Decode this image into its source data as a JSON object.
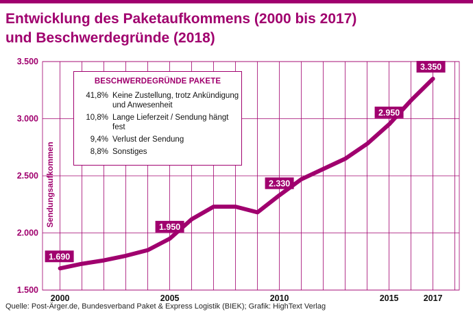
{
  "colors": {
    "accent": "#a0006e",
    "grid": "#a0006e",
    "text": "#222222"
  },
  "title": {
    "line1": "Entwicklung des Paketaufkommens (2000 bis 2017)",
    "line2": "und Beschwerdegründe (2018)"
  },
  "source": "Quelle: Post-Ärger.de, Bundesverband Paket & Express Logistik (BIEK); Grafik: HighText Verlag",
  "legend_box": {
    "title": "BESCHWERDEGRÜNDE PAKETE",
    "items": [
      {
        "pct": "41,8%",
        "text": "Keine Zustellung, trotz Ankündigung und Anwesenheit"
      },
      {
        "pct": "10,8%",
        "text": "Lange Lieferzeit / Sendung hängt fest"
      },
      {
        "pct": "9,4%",
        "text": "Verlust der Sendung"
      },
      {
        "pct": "8,8%",
        "text": "Sonstiges"
      }
    ]
  },
  "chart_data": {
    "type": "line",
    "title": "Entwicklung des Paketaufkommens (2000 bis 2017)",
    "ylabel": "Sendungsaufkommen",
    "xlabel": "",
    "ylim": [
      1500,
      3500
    ],
    "yticks": [
      1500,
      2000,
      2500,
      3000,
      3500
    ],
    "ytick_labels": [
      "1.500",
      "2.000",
      "2.500",
      "3.000",
      "3.500"
    ],
    "xticks": [
      2000,
      2005,
      2010,
      2015,
      2017
    ],
    "xtick_labels": [
      "2000",
      "2005",
      "2010",
      "2015",
      "2017"
    ],
    "grid": true,
    "x": [
      2000,
      2001,
      2002,
      2003,
      2004,
      2005,
      2006,
      2007,
      2008,
      2009,
      2010,
      2011,
      2012,
      2013,
      2014,
      2015,
      2016,
      2017
    ],
    "values": [
      1690,
      1730,
      1760,
      1800,
      1850,
      1950,
      2120,
      2230,
      2230,
      2180,
      2330,
      2470,
      2560,
      2650,
      2780,
      2950,
      3160,
      3350
    ],
    "data_labels": [
      {
        "x": 2000,
        "label": "1.690"
      },
      {
        "x": 2005,
        "label": "1.950"
      },
      {
        "x": 2010,
        "label": "2.330"
      },
      {
        "x": 2015,
        "label": "2.950"
      },
      {
        "x": 2017,
        "label": "3.350"
      }
    ]
  }
}
